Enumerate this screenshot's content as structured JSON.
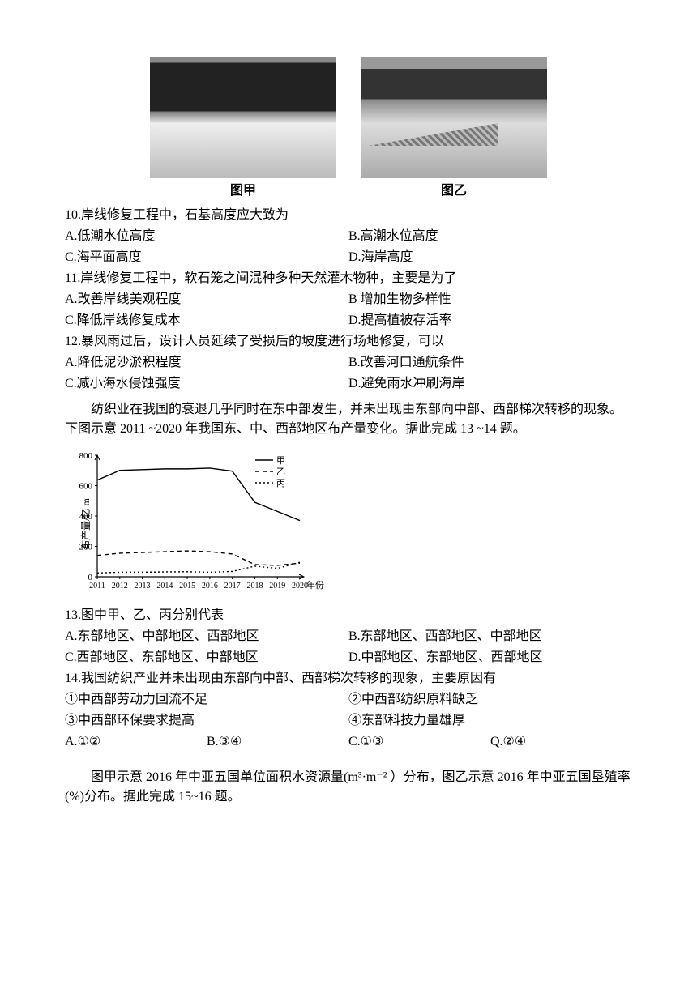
{
  "figures": {
    "left_caption": "图甲",
    "right_caption": "图乙"
  },
  "q10": {
    "stem": "10.岸线修复工程中，石基高度应大致为",
    "A": "A.低潮水位高度",
    "B": "B.高潮水位高度",
    "C": "C.海平面高度",
    "D": "D.海岸高度"
  },
  "q11": {
    "stem": "11.岸线修复工程中，软石笼之间混种多种天然灌木物种，主要是为了",
    "A": "A.改善岸线美观程度",
    "B": "B  增加生物多样性",
    "C": "C.降低岸线修复成本",
    "D": "D.提高植被存活率"
  },
  "q12": {
    "stem": "12.暴风雨过后，设计人员延续了受损后的坡度进行场地修复，可以",
    "A": "A.降低泥沙淤积程度",
    "B": "B.改善河口通航条件",
    "C": "C.减小海水侵蚀强度",
    "D": "D.避免雨水冲刷海岸"
  },
  "passage1": "纺织业在我国的衰退几乎同时在东中部发生，并未出现由东部向中部、西部梯次转移的现象。下图示意 2011 ~2020 年我国东、中、西部地区布产量变化。据此完成 13 ~14 题。",
  "chart": {
    "type": "line",
    "ylabel": "布产量/亿 m",
    "ylim": [
      0,
      800
    ],
    "ytick_step": 200,
    "yticks": [
      "0",
      "200",
      "400",
      "600",
      "800"
    ],
    "xlabel_suffix": "年份",
    "years": [
      "2011",
      "2012",
      "2013",
      "2014",
      "2015",
      "2016",
      "2017",
      "2018",
      "2019",
      "2020"
    ],
    "legend": {
      "items": [
        "甲",
        "乙",
        "丙"
      ],
      "styles": [
        "solid",
        "dashed",
        "dotted"
      ]
    },
    "series": {
      "jia": {
        "label": "甲",
        "style": "solid",
        "values": [
          636,
          700,
          705,
          710,
          710,
          715,
          695,
          490,
          430,
          370
        ]
      },
      "yi": {
        "label": "乙",
        "style": "dashed",
        "values": [
          140,
          155,
          160,
          165,
          170,
          165,
          150,
          80,
          75,
          90
        ]
      },
      "bing": {
        "label": "丙",
        "style": "dotted",
        "values": [
          25,
          30,
          30,
          32,
          33,
          30,
          35,
          70,
          55,
          95
        ]
      }
    },
    "axis_color": "#000000",
    "line_color": "#000000",
    "background_color": "#ffffff",
    "label_fontsize": 11
  },
  "q13": {
    "stem": "13.图中甲、乙、丙分别代表",
    "A": "A.东部地区、中部地区、西部地区",
    "B": "B.东部地区、西部地区、中部地区",
    "C": "C.西部地区、东部地区、中部地区",
    "D": "D.中部地区、东部地区、西部地区"
  },
  "q14": {
    "stem": "14.我国纺织产业并未出现由东部向中部、西部梯次转移的现象，主要原因有",
    "c1": "①中西部劳动力回流不足",
    "c2": "②中西部纺织原料缺乏",
    "c3": "③中西部环保要求提高",
    "c4": "④东部科技力量雄厚",
    "A": "A.①②",
    "B": "B.③④",
    "C": "C.①③",
    "D": "Q.②④"
  },
  "passage2": "图甲示意 2016 年中亚五国单位面积水资源量(m³·m⁻² ）分布，图乙示意 2016 年中亚五国垦殖率(%)分布。据此完成 15~16 题。"
}
